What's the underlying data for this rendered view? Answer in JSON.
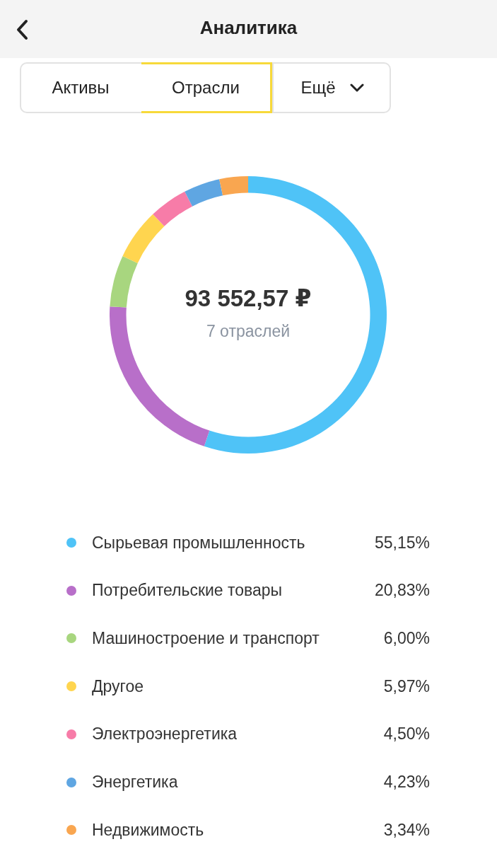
{
  "chart_data": {
    "type": "donut",
    "title": "Аналитика",
    "categories": [
      "Сырьевая промышленность",
      "Потребительские товары",
      "Машиностроение и транспорт",
      "Другое",
      "Электроэнергетика",
      "Энергетика",
      "Недвижимость"
    ],
    "values": [
      55.15,
      20.83,
      6.0,
      5.97,
      4.5,
      4.23,
      3.34
    ],
    "colors": [
      "#4fc3f7",
      "#b86fc9",
      "#a8d67f",
      "#ffd54f",
      "#f77ca8",
      "#5fa6e2",
      "#f9a650"
    ],
    "value_labels": [
      "55,15%",
      "20,83%",
      "6,00%",
      "5,97%",
      "4,50%",
      "4,23%",
      "3,34%"
    ],
    "legend": "bottom",
    "annotations": [
      "Активы",
      "Отрасли",
      "Ещё",
      "93 552,57 ₽",
      "7 отраслей"
    ]
  }
}
